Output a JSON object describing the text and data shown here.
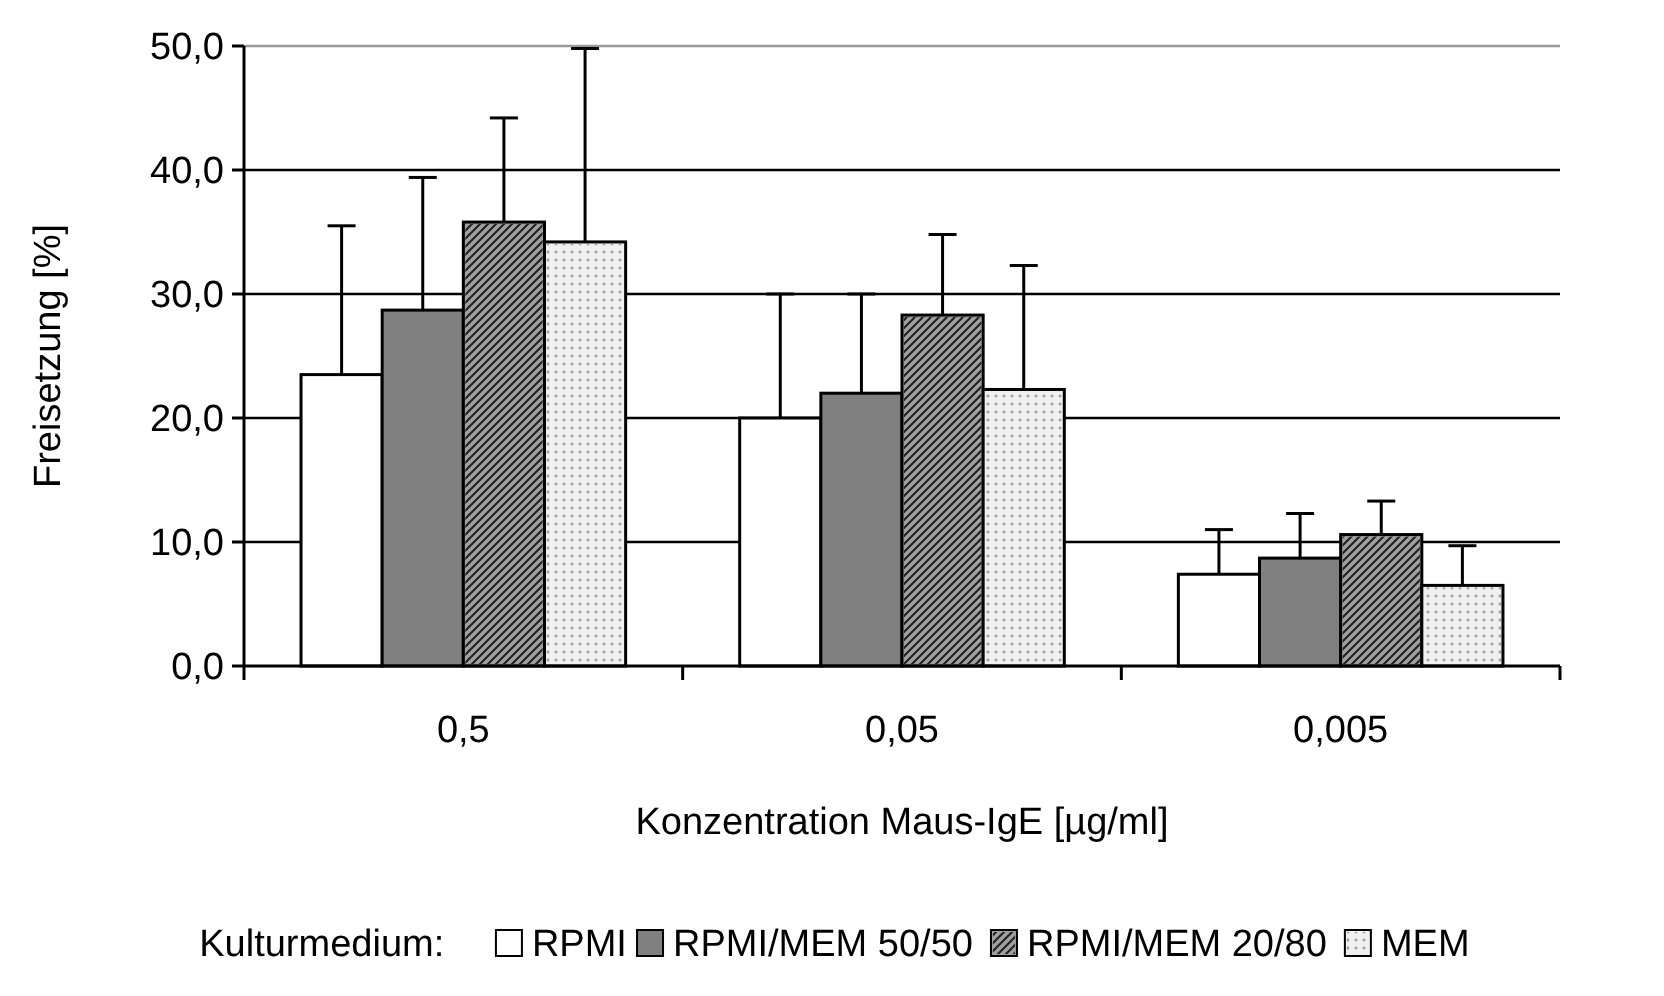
{
  "chart_data": {
    "type": "bar",
    "xlabel": "Konzentration Maus-IgE [µg/ml]",
    "ylabel": "Freisetzung [%]",
    "legend_title": "Kulturmedium:",
    "legend": "bottom",
    "grid": "y",
    "categories": [
      "0,5",
      "0,05",
      "0,005"
    ],
    "ylim": [
      0,
      50
    ],
    "yticks": [
      {
        "value": 0,
        "label": "0,0"
      },
      {
        "value": 10,
        "label": "10,0"
      },
      {
        "value": 20,
        "label": "20,0"
      },
      {
        "value": 30,
        "label": "30,0"
      },
      {
        "value": 40,
        "label": "40,0"
      },
      {
        "value": 50,
        "label": "50,0"
      }
    ],
    "series": [
      {
        "name": "RPMI",
        "color": "#ffffff",
        "values": [
          23.5,
          20.0,
          7.4
        ],
        "errors": [
          [
            23.5,
            35.5
          ],
          [
            20.0,
            30.0
          ],
          [
            7.4,
            11.0
          ]
        ]
      },
      {
        "name": "RPMI/MEM 50/50",
        "color": "#808080",
        "values": [
          28.7,
          22.0,
          8.7
        ],
        "errors": [
          [
            28.7,
            39.4
          ],
          [
            22.0,
            30.0
          ],
          [
            8.7,
            12.3
          ]
        ]
      },
      {
        "name": "RPMI/MEM 20/80",
        "color": "#a0a0a0",
        "values": [
          35.8,
          28.3,
          10.6
        ],
        "errors": [
          [
            35.8,
            44.2
          ],
          [
            28.3,
            34.8
          ],
          [
            10.6,
            13.3
          ]
        ]
      },
      {
        "name": "MEM",
        "color": "#f0f0f0",
        "values": [
          34.2,
          22.3,
          6.5
        ],
        "errors": [
          [
            34.2,
            49.8
          ],
          [
            22.3,
            32.3
          ],
          [
            6.5,
            9.7
          ]
        ]
      }
    ]
  }
}
